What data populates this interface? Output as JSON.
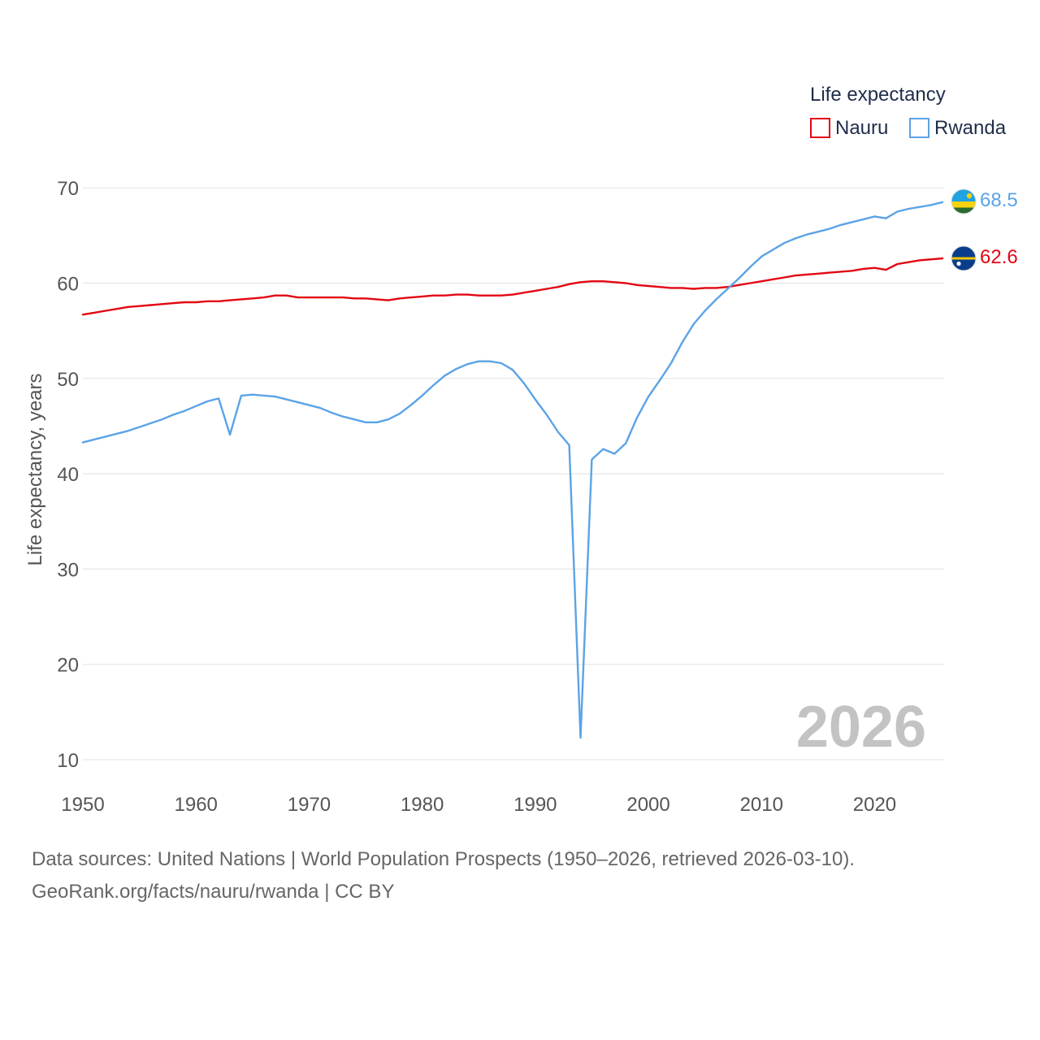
{
  "chart_data": {
    "type": "line",
    "title": "",
    "year_marker": "2026",
    "legend_title": "Life expectancy",
    "xlabel": "",
    "ylabel": "Life expectancy, years",
    "xlim": [
      1950,
      2026
    ],
    "ylim": [
      9,
      72
    ],
    "x_ticks": [
      1950,
      1960,
      1970,
      1980,
      1990,
      2000,
      2010,
      2020
    ],
    "y_ticks": [
      10,
      20,
      30,
      40,
      50,
      60,
      70
    ],
    "grid": true,
    "legend_position": "top-right",
    "x": [
      1950,
      1951,
      1952,
      1953,
      1954,
      1955,
      1956,
      1957,
      1958,
      1959,
      1960,
      1961,
      1962,
      1963,
      1964,
      1965,
      1966,
      1967,
      1968,
      1969,
      1970,
      1971,
      1972,
      1973,
      1974,
      1975,
      1976,
      1977,
      1978,
      1979,
      1980,
      1981,
      1982,
      1983,
      1984,
      1985,
      1986,
      1987,
      1988,
      1989,
      1990,
      1991,
      1992,
      1993,
      1994,
      1995,
      1996,
      1997,
      1998,
      1999,
      2000,
      2001,
      2002,
      2003,
      2004,
      2005,
      2006,
      2007,
      2008,
      2009,
      2010,
      2011,
      2012,
      2013,
      2014,
      2015,
      2016,
      2017,
      2018,
      2019,
      2020,
      2021,
      2022,
      2023,
      2024,
      2025,
      2026
    ],
    "series": [
      {
        "name": "Nauru",
        "color": "#e30613",
        "end_label": "62.6",
        "flag": "nauru-flag",
        "values": [
          56.7,
          56.9,
          57.1,
          57.3,
          57.5,
          57.6,
          57.7,
          57.8,
          57.9,
          58.0,
          58.0,
          58.1,
          58.1,
          58.2,
          58.3,
          58.4,
          58.5,
          58.7,
          58.7,
          58.5,
          58.5,
          58.5,
          58.5,
          58.5,
          58.4,
          58.4,
          58.3,
          58.2,
          58.4,
          58.5,
          58.6,
          58.7,
          58.7,
          58.8,
          58.8,
          58.7,
          58.7,
          58.7,
          58.8,
          59.0,
          59.2,
          59.4,
          59.6,
          59.9,
          60.1,
          60.2,
          60.2,
          60.1,
          60.0,
          59.8,
          59.7,
          59.6,
          59.5,
          59.5,
          59.4,
          59.5,
          59.5,
          59.6,
          59.8,
          60.0,
          60.2,
          60.4,
          60.6,
          60.8,
          60.9,
          61.0,
          61.1,
          61.2,
          61.3,
          61.5,
          61.6,
          61.4,
          62.0,
          62.2,
          62.4,
          62.5,
          62.6
        ]
      },
      {
        "name": "Rwanda",
        "color": "#5ba3e6",
        "end_label": "68.5",
        "flag": "rwanda-flag",
        "values": [
          43.3,
          43.6,
          43.9,
          44.2,
          44.5,
          44.9,
          45.3,
          45.7,
          46.2,
          46.6,
          47.1,
          47.6,
          47.9,
          44.1,
          48.2,
          48.3,
          48.2,
          48.1,
          47.8,
          47.5,
          47.2,
          46.9,
          46.4,
          46.0,
          45.7,
          45.4,
          45.4,
          45.7,
          46.3,
          47.2,
          48.2,
          49.3,
          50.3,
          51.0,
          51.5,
          51.8,
          51.8,
          51.6,
          50.9,
          49.5,
          47.8,
          46.2,
          44.4,
          43.0,
          12.3,
          41.5,
          42.6,
          42.1,
          43.2,
          45.9,
          48.1,
          49.8,
          51.6,
          53.8,
          55.7,
          57.1,
          58.3,
          59.4,
          60.5,
          61.7,
          62.8,
          63.5,
          64.2,
          64.7,
          65.1,
          65.4,
          65.7,
          66.1,
          66.4,
          66.7,
          67.0,
          66.8,
          67.5,
          67.8,
          68.0,
          68.2,
          68.5
        ]
      }
    ]
  },
  "footer": {
    "line1": "Data sources: United Nations | World Population Prospects (1950–2026, retrieved 2026-03-10).",
    "line2": "GeoRank.org/facts/nauru/rwanda | CC BY"
  }
}
